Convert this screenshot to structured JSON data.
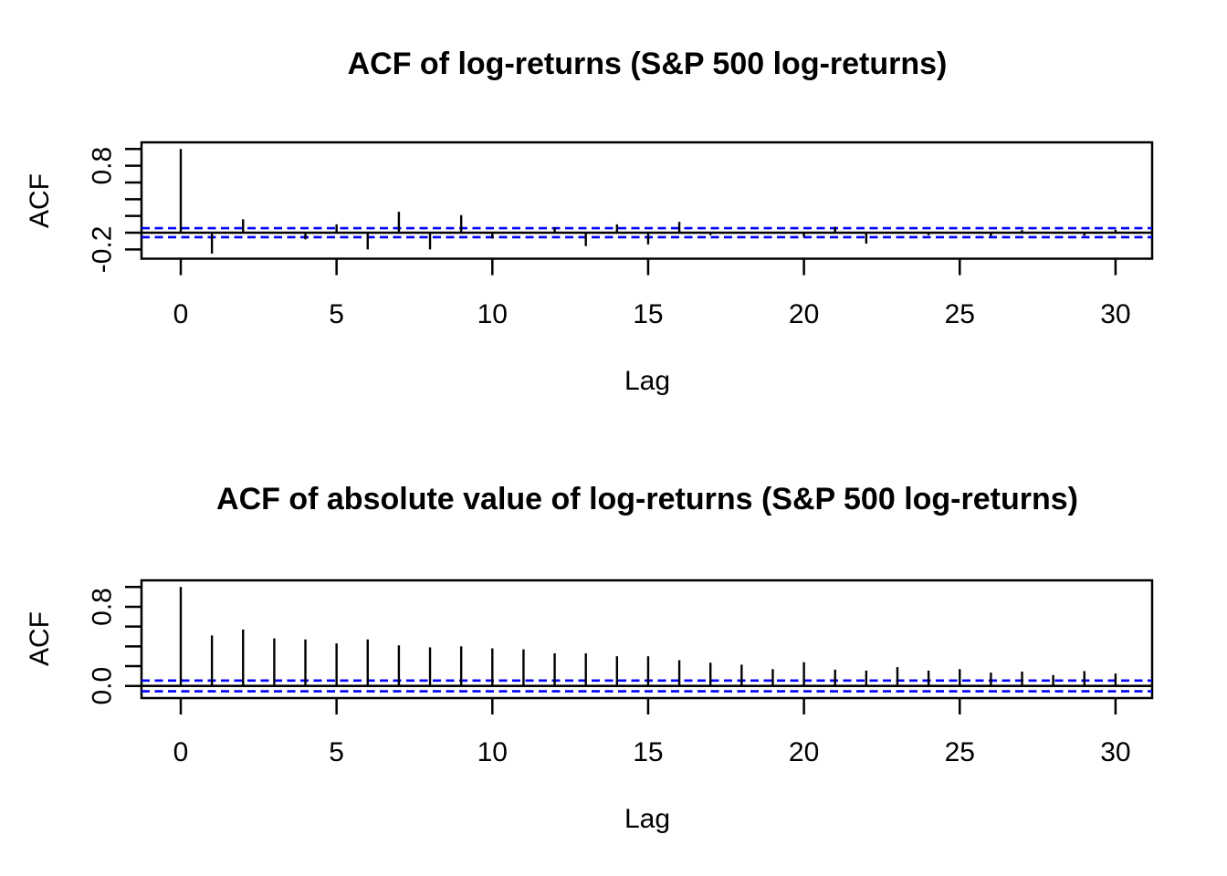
{
  "page": {
    "background": "#ffffff"
  },
  "chart_data": [
    {
      "type": "stem",
      "title": "ACF of log-returns (S&P 500 log-returns)",
      "xlabel": "Lag",
      "ylabel": "ACF",
      "x": [
        0,
        1,
        2,
        3,
        4,
        5,
        6,
        7,
        8,
        9,
        10,
        11,
        12,
        13,
        14,
        15,
        16,
        17,
        18,
        19,
        20,
        21,
        22,
        23,
        24,
        25,
        26,
        27,
        28,
        29,
        30
      ],
      "values": [
        1.0,
        -0.25,
        0.16,
        -0.01,
        -0.08,
        0.1,
        -0.2,
        0.25,
        -0.2,
        0.21,
        -0.07,
        0.01,
        0.06,
        -0.16,
        0.1,
        -0.14,
        0.13,
        -0.03,
        -0.005,
        0.005,
        -0.05,
        0.07,
        -0.13,
        -0.01,
        -0.03,
        0.01,
        -0.04,
        0.03,
        0.01,
        -0.035,
        0.035
      ],
      "conf_level": 0.054,
      "conf_line_color": "#0000ff",
      "conf_line_style": "dashed",
      "line_color": "#000000",
      "xlim": [
        -1.2,
        31.2
      ],
      "ylim": [
        -0.3,
        1.05
      ],
      "x_ticks": [
        0,
        5,
        10,
        15,
        20,
        25,
        30
      ],
      "y_ticks": [
        {
          "v": 1.0,
          "label": ""
        },
        {
          "v": 0.8,
          "label": "0.8"
        },
        {
          "v": 0.6,
          "label": ""
        },
        {
          "v": 0.4,
          "label": ""
        },
        {
          "v": 0.2,
          "label": ""
        },
        {
          "v": 0.0,
          "label": ""
        },
        {
          "v": -0.2,
          "label": "-0.2"
        }
      ],
      "grid": false,
      "legend": null
    },
    {
      "type": "stem",
      "title": "ACF of absolute value of log-returns (S&P 500 log-returns)",
      "xlabel": "Lag",
      "ylabel": "ACF",
      "x": [
        0,
        1,
        2,
        3,
        4,
        5,
        6,
        7,
        8,
        9,
        10,
        11,
        12,
        13,
        14,
        15,
        16,
        17,
        18,
        19,
        20,
        21,
        22,
        23,
        24,
        25,
        26,
        27,
        28,
        29,
        30
      ],
      "values": [
        1.0,
        0.51,
        0.57,
        0.48,
        0.47,
        0.43,
        0.47,
        0.41,
        0.39,
        0.4,
        0.38,
        0.37,
        0.33,
        0.33,
        0.3,
        0.3,
        0.26,
        0.235,
        0.215,
        0.17,
        0.24,
        0.165,
        0.155,
        0.19,
        0.155,
        0.17,
        0.135,
        0.145,
        0.11,
        0.15,
        0.125
      ],
      "conf_level": 0.054,
      "conf_line_color": "#0000ff",
      "conf_line_style": "dashed",
      "line_color": "#000000",
      "xlim": [
        -1.2,
        31.2
      ],
      "ylim": [
        -0.097,
        1.042
      ],
      "x_ticks": [
        0,
        5,
        10,
        15,
        20,
        25,
        30
      ],
      "y_ticks": [
        {
          "v": 1.0,
          "label": ""
        },
        {
          "v": 0.8,
          "label": "0.8"
        },
        {
          "v": 0.6,
          "label": ""
        },
        {
          "v": 0.4,
          "label": ""
        },
        {
          "v": 0.2,
          "label": ""
        },
        {
          "v": 0.0,
          "label": "0.0"
        }
      ],
      "grid": false,
      "legend": null
    }
  ]
}
